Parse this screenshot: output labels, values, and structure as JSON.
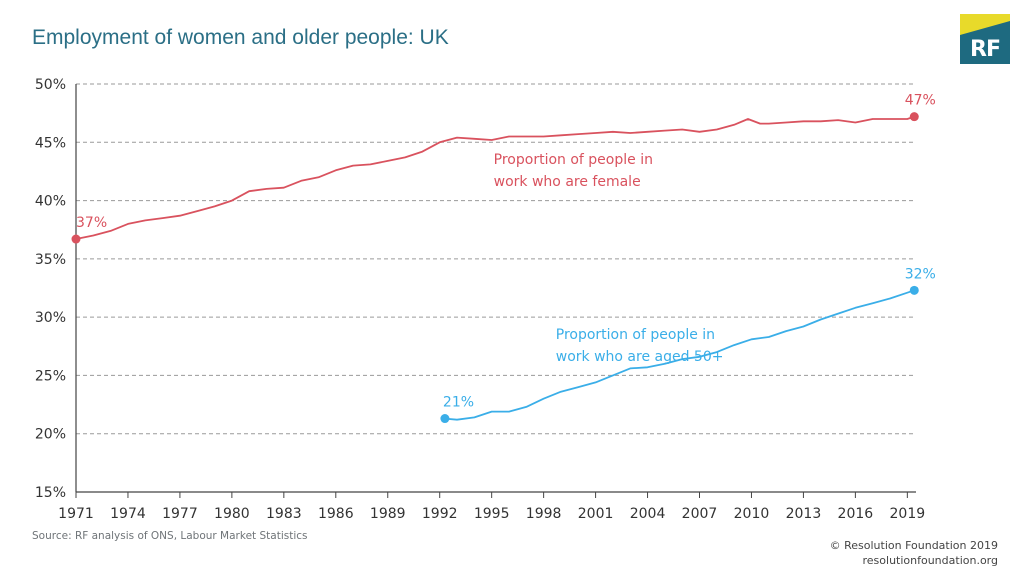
{
  "title": "Employment of women and older people: UK",
  "logo": {
    "text": "RF",
    "colors": {
      "top": "#e8da2a",
      "bottom": "#1e6a80"
    }
  },
  "source": "Source: RF analysis of ONS, Labour Market Statistics",
  "copyright": [
    "© Resolution Foundation 2019",
    "resolutionfoundation.org"
  ],
  "chart_data": {
    "type": "line",
    "ylim": [
      15,
      50
    ],
    "yticks": [
      "15%",
      "20%",
      "25%",
      "30%",
      "35%",
      "40%",
      "45%",
      "50%"
    ],
    "ytick_values": [
      15,
      20,
      25,
      30,
      35,
      40,
      45,
      50
    ],
    "xlim": [
      1971,
      2019.5
    ],
    "xticks": [
      "1971",
      "1974",
      "1977",
      "1980",
      "1983",
      "1986",
      "1989",
      "1992",
      "1995",
      "1998",
      "2001",
      "2004",
      "2007",
      "2010",
      "2013",
      "2016",
      "2019"
    ],
    "xtick_values": [
      1971,
      1974,
      1977,
      1980,
      1983,
      1986,
      1989,
      1992,
      1995,
      1998,
      2001,
      2004,
      2007,
      2010,
      2013,
      2016,
      2019
    ],
    "grid": "horizontal dashed",
    "series": [
      {
        "name": "Proportion of people in work who are female",
        "color": "#d9525e",
        "x": [
          1971,
          1972,
          1973,
          1974,
          1975,
          1976,
          1977,
          1978,
          1979,
          1980,
          1981,
          1982,
          1983,
          1984,
          1985,
          1986,
          1987,
          1988,
          1989,
          1990,
          1991,
          1992,
          1993,
          1994,
          1995,
          1996,
          1997,
          1998,
          1999,
          2000,
          2001,
          2002,
          2003,
          2004,
          2005,
          2006,
          2007,
          2008,
          2009,
          2009.8,
          2010.5,
          2011,
          2012,
          2013,
          2014,
          2015,
          2016,
          2017,
          2018,
          2019,
          2019.4
        ],
        "values": [
          36.7,
          37.0,
          37.4,
          38.0,
          38.3,
          38.5,
          38.7,
          39.1,
          39.5,
          40.0,
          40.8,
          41.0,
          41.1,
          41.7,
          42.0,
          42.6,
          43.0,
          43.1,
          43.4,
          43.7,
          44.2,
          45.0,
          45.4,
          45.3,
          45.2,
          45.5,
          45.5,
          45.5,
          45.6,
          45.7,
          45.8,
          45.9,
          45.8,
          45.9,
          46.0,
          46.1,
          45.9,
          46.1,
          46.5,
          47.0,
          46.6,
          46.6,
          46.7,
          46.8,
          46.8,
          46.9,
          46.7,
          47.0,
          47.0,
          47.0,
          47.2
        ],
        "start_label": "37%",
        "end_label": "47%",
        "annotation": [
          "Proportion of people in",
          "work who are female"
        ]
      },
      {
        "name": "Proportion of people in work who are aged 50+",
        "color": "#3aaee8",
        "x": [
          1992.3,
          1993,
          1994,
          1995,
          1996,
          1997,
          1998,
          1999,
          2000,
          2001,
          2002,
          2003,
          2004,
          2005,
          2006,
          2007,
          2008,
          2009,
          2010,
          2011,
          2012,
          2013,
          2014,
          2015,
          2016,
          2017,
          2018,
          2019,
          2019.4
        ],
        "values": [
          21.3,
          21.2,
          21.4,
          21.9,
          21.9,
          22.3,
          23.0,
          23.6,
          24.0,
          24.4,
          25.0,
          25.6,
          25.7,
          26.0,
          26.4,
          26.6,
          27.0,
          27.6,
          28.1,
          28.3,
          28.8,
          29.2,
          29.8,
          30.3,
          30.8,
          31.2,
          31.6,
          32.1,
          32.3
        ],
        "start_label": "21%",
        "end_label": "32%",
        "annotation": [
          "Proportion of people in",
          "work who are aged 50+"
        ]
      }
    ]
  }
}
